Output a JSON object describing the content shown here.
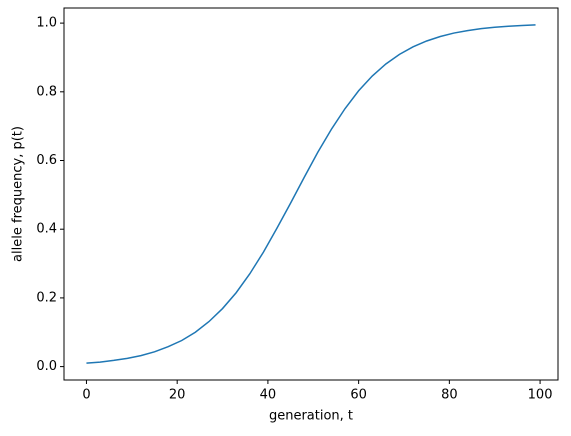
{
  "chart_data": {
    "type": "line",
    "xlabel": "generation, t",
    "ylabel": "allele frequency, p(t)",
    "x": [
      0,
      3,
      6,
      9,
      12,
      15,
      18,
      21,
      24,
      27,
      30,
      33,
      36,
      39,
      42,
      45,
      48,
      51,
      54,
      57,
      60,
      63,
      66,
      69,
      72,
      75,
      78,
      81,
      84,
      87,
      90,
      93,
      96,
      99
    ],
    "series": [
      {
        "color": "#1f77b4",
        "values": [
          0.01,
          0.013,
          0.018,
          0.024,
          0.032,
          0.043,
          0.058,
          0.076,
          0.1,
          0.131,
          0.169,
          0.215,
          0.27,
          0.333,
          0.403,
          0.476,
          0.551,
          0.624,
          0.691,
          0.751,
          0.803,
          0.846,
          0.881,
          0.909,
          0.931,
          0.948,
          0.961,
          0.971,
          0.978,
          0.984,
          0.988,
          0.991,
          0.993,
          0.995
        ]
      }
    ],
    "xlim": [
      -4.95,
      103.95
    ],
    "ylim": [
      -0.039,
      1.044
    ],
    "xticks": [
      0,
      20,
      40,
      60,
      80,
      100
    ],
    "yticks": [
      {
        "value": 0,
        "label": "0.0"
      },
      0.2,
      0.4,
      0.6,
      0.8,
      {
        "value": 1,
        "label": "1.0"
      }
    ]
  }
}
